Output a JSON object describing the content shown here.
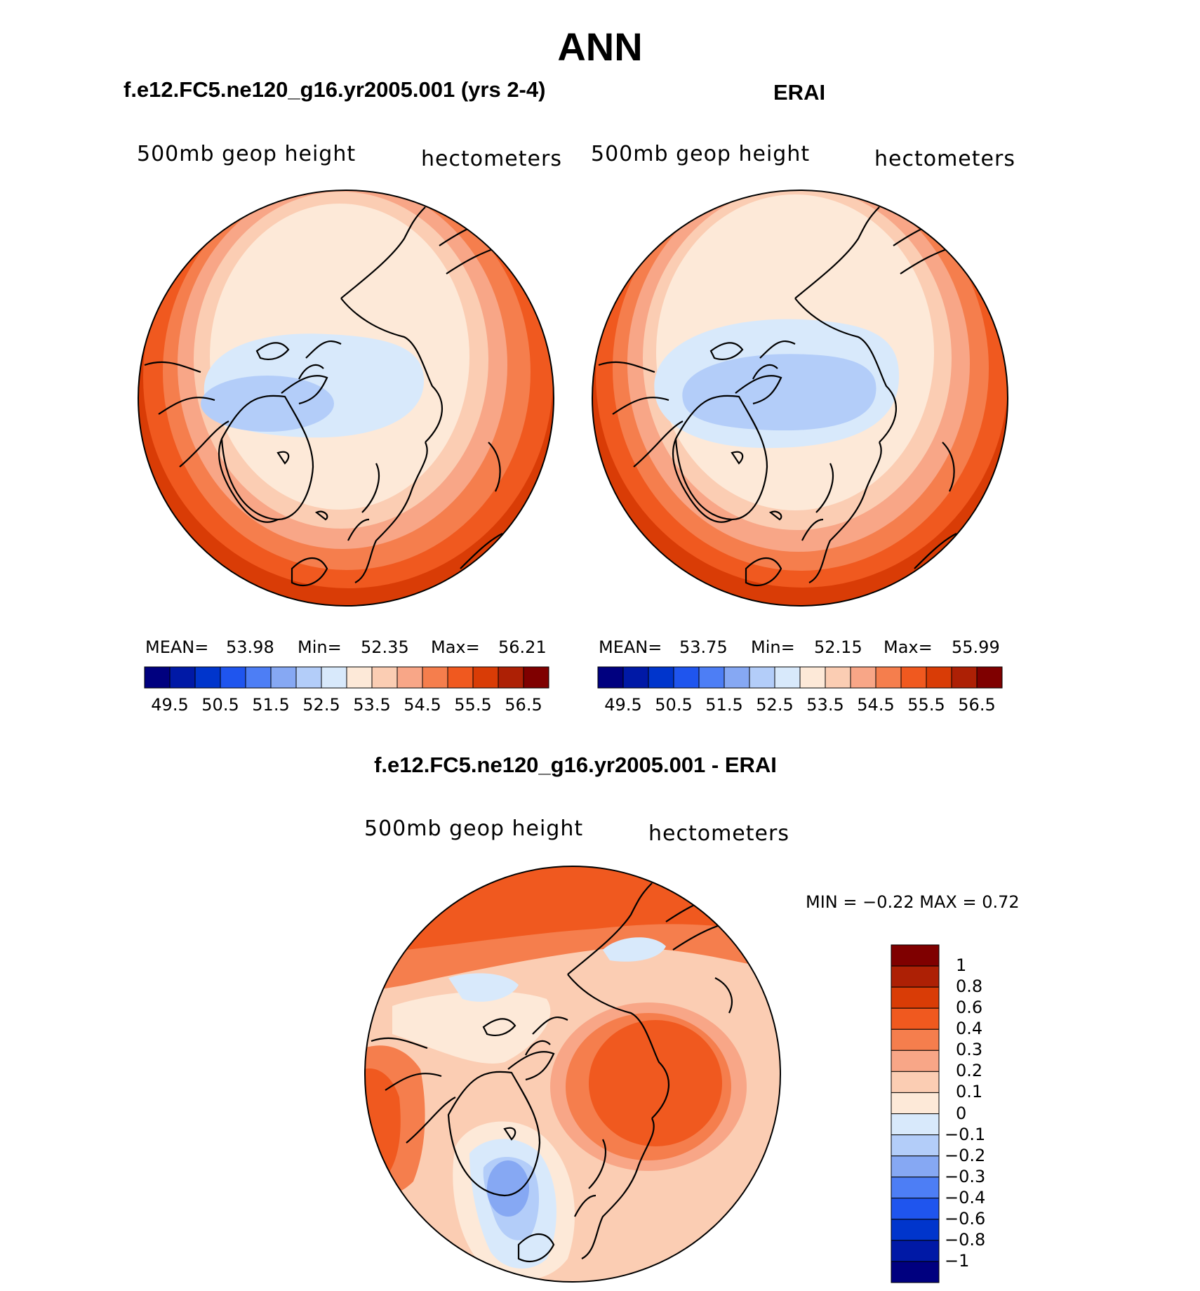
{
  "title": "ANN",
  "units": "hectometers",
  "panels": [
    {
      "id": "model",
      "title": "f.e12.FC5.ne120_g16.yr2005.001 (yrs 2-4)",
      "field": "500mb geop height",
      "units": "hectometers",
      "stats": {
        "mean_label": "MEAN=",
        "mean": "53.98",
        "min_label": "Min=",
        "min": "52.35",
        "max_label": "Max=",
        "max": "56.21"
      }
    },
    {
      "id": "obs",
      "title": "ERAI",
      "field": "500mb geop height",
      "units": "hectometers",
      "stats": {
        "mean_label": "MEAN=",
        "mean": "53.75",
        "min_label": "Min=",
        "min": "52.15",
        "max_label": "Max=",
        "max": "55.99"
      }
    },
    {
      "id": "diff",
      "title": "f.e12.FC5.ne120_g16.yr2005.001 - ERAI",
      "field": "500mb geop height",
      "units": "hectometers",
      "stats": {
        "minmax_text": "MIN =    −0.22 MAX =     0.72"
      }
    }
  ],
  "colorbar_horizontal": {
    "colors": [
      "#00007f",
      "#0019a6",
      "#0035cc",
      "#1f55ee",
      "#4d7ef5",
      "#86a8f3",
      "#b3cdf9",
      "#d8e9fb",
      "#fde9d8",
      "#fbcdb3",
      "#f8a687",
      "#f57e4d",
      "#f0591f",
      "#d93c06",
      "#ad2005",
      "#7f0000"
    ],
    "tick_labels": [
      "49.5",
      "50.5",
      "51.5",
      "52.5",
      "53.5",
      "54.5",
      "55.5",
      "56.5"
    ]
  },
  "colorbar_vertical": {
    "colors_top_to_bottom": [
      "#7f0000",
      "#ad2005",
      "#d93c06",
      "#f0591f",
      "#f57e4d",
      "#f8a687",
      "#fbcdb3",
      "#fde9d8",
      "#d8e9fb",
      "#b3cdf9",
      "#86a8f3",
      "#4d7ef5",
      "#1f55ee",
      "#0035cc",
      "#0019a6",
      "#00007f"
    ],
    "tick_labels_top_to_bottom": [
      "1",
      "0.8",
      "0.6",
      "0.4",
      "0.3",
      "0.2",
      "0.1",
      "0",
      "−0.1",
      "−0.2",
      "−0.3",
      "−0.4",
      "−0.6",
      "−0.8",
      "−1"
    ]
  },
  "chart_data": [
    {
      "type": "heatmap",
      "title": "f.e12.FC5.ne120_g16.yr2005.001 (yrs 2-4)",
      "field": "500mb geop height",
      "units": "hectometers",
      "mean": 53.98,
      "min": 52.35,
      "max": 56.21,
      "levels": [
        49.5,
        50,
        50.5,
        51,
        51.5,
        52,
        52.5,
        53,
        53.5,
        54,
        54.5,
        55,
        55.5,
        56,
        56.5
      ],
      "projection": "polar stereographic, north pole",
      "rings": [
        56.0,
        55.5,
        55.0,
        54.5,
        54.0,
        53.5,
        53.0,
        52.5
      ]
    },
    {
      "type": "heatmap",
      "title": "ERAI",
      "field": "500mb geop height",
      "units": "hectometers",
      "mean": 53.75,
      "min": 52.15,
      "max": 55.99,
      "levels": [
        49.5,
        50,
        50.5,
        51,
        51.5,
        52,
        52.5,
        53,
        53.5,
        54,
        54.5,
        55,
        55.5,
        56,
        56.5
      ],
      "projection": "polar stereographic, north pole",
      "rings": [
        55.5,
        55.0,
        54.5,
        54.0,
        53.5,
        53.0,
        52.5
      ]
    },
    {
      "type": "heatmap",
      "title": "f.e12.FC5.ne120_g16.yr2005.001 - ERAI",
      "field": "500mb geop height",
      "units": "hectometers",
      "min": -0.22,
      "max": 0.72,
      "levels": [
        -1,
        -0.8,
        -0.6,
        -0.4,
        -0.3,
        -0.2,
        -0.1,
        0,
        0.1,
        0.2,
        0.3,
        0.4,
        0.6,
        0.8,
        1
      ],
      "projection": "polar stereographic, north pole"
    }
  ]
}
